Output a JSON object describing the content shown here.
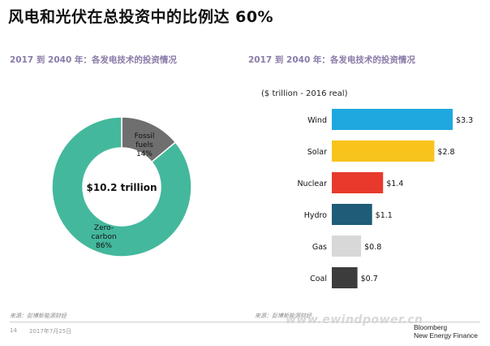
{
  "page_title": "风电和光伏在总投资中的比例达 60%",
  "left_panel": {
    "subtitle": "2017 到 2040 年：各发电技术的投资情况"
  },
  "right_panel": {
    "subtitle": "2017 到 2040 年：各发电技术的投资情况",
    "unit": "($ trillion - 2016 real)"
  },
  "footer": {
    "source_left": "来源：彭博新能源财经",
    "source_right": "来源：彭博新能源财经",
    "page_number": "14",
    "date": "2017年7月25日",
    "watermark": "www.ewindpower.cn",
    "logo_line1": "Bloomberg",
    "logo_line2": "New Energy Finance"
  },
  "colors": {
    "donut_zero_carbon": "#44b89c",
    "donut_fossil": "#6f6f6f",
    "wind": "#1fa8e0",
    "solar": "#f8c41c",
    "nuclear": "#e8392c",
    "hydro": "#1e5c77",
    "gas": "#d8d8d8",
    "coal": "#3c3c3c"
  },
  "chart_data": [
    {
      "type": "pie",
      "center_label": "$10.2 trillion",
      "slices": [
        {
          "label": "Zero-carbon",
          "value": 86,
          "value_label": "86%",
          "color": "#44b89c"
        },
        {
          "label": "Fossil fuels",
          "value": 14,
          "value_label": "14%",
          "color": "#6f6f6f"
        }
      ]
    },
    {
      "type": "bar",
      "orientation": "horizontal",
      "unit": "($ trillion - 2016 real)",
      "categories": [
        "Wind",
        "Solar",
        "Nuclear",
        "Hydro",
        "Gas",
        "Coal"
      ],
      "values": [
        3.3,
        2.8,
        1.4,
        1.1,
        0.8,
        0.7
      ],
      "value_labels": [
        "$3.3",
        "$2.8",
        "$1.4",
        "$1.1",
        "$0.8",
        "$0.7"
      ],
      "colors": [
        "#1fa8e0",
        "#f8c41c",
        "#e8392c",
        "#1e5c77",
        "#d8d8d8",
        "#3c3c3c"
      ],
      "xlim": [
        0,
        3.3
      ]
    }
  ]
}
